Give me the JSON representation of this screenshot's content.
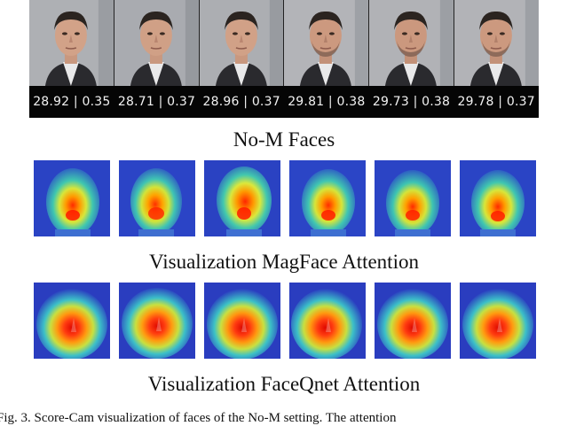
{
  "figure": {
    "face_scores": [
      {
        "score": "28.92 | 0.35"
      },
      {
        "score": "28.71 | 0.37"
      },
      {
        "score": "28.96 | 0.37"
      },
      {
        "score": "29.81 | 0.38"
      },
      {
        "score": "29.73 | 0.38"
      },
      {
        "score": "29.78 | 0.37"
      }
    ],
    "labels": {
      "faces": "No-M Faces",
      "magface": "Visualization MagFace Attention",
      "faceqnet": "Visualization FaceQnet Attention"
    },
    "caption": "Fig. 3.   Score-Cam visualization of faces of the No-M setting. The attention"
  }
}
